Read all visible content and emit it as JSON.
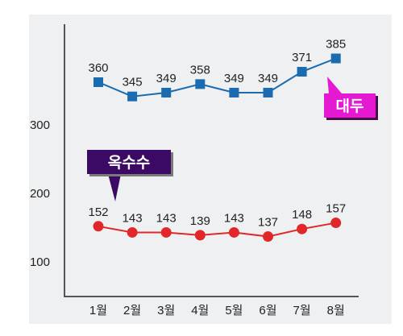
{
  "chart_data": {
    "type": "line",
    "categories": [
      "1월",
      "2월",
      "3월",
      "4월",
      "5월",
      "6월",
      "7월",
      "8월"
    ],
    "y_ticks": [
      100,
      200,
      300
    ],
    "y_tick_labels": [
      "100",
      "200",
      "300"
    ],
    "grid": false,
    "series": [
      {
        "name": "대두",
        "values": [
          360,
          345,
          349,
          358,
          349,
          349,
          371,
          385
        ],
        "color": "#1b6bb0",
        "marker": "square",
        "callout_color": "#e619d2"
      },
      {
        "name": "옥수수",
        "values": [
          152,
          143,
          143,
          139,
          143,
          137,
          148,
          157
        ],
        "color": "#e0282a",
        "marker": "circle",
        "callout_color": "#3b0a64"
      }
    ],
    "background_color": "#eef0f1"
  }
}
